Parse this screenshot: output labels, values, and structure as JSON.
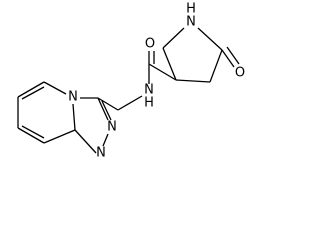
{
  "atoms": [
    {
      "label": "N"
    },
    {
      "label": "H"
    },
    {
      "label": "O"
    },
    {
      "label": "O"
    },
    {
      "label": "N"
    },
    {
      "label": "H"
    },
    {
      "label": "N"
    },
    {
      "label": "N"
    },
    {
      "label": "N"
    }
  ]
}
